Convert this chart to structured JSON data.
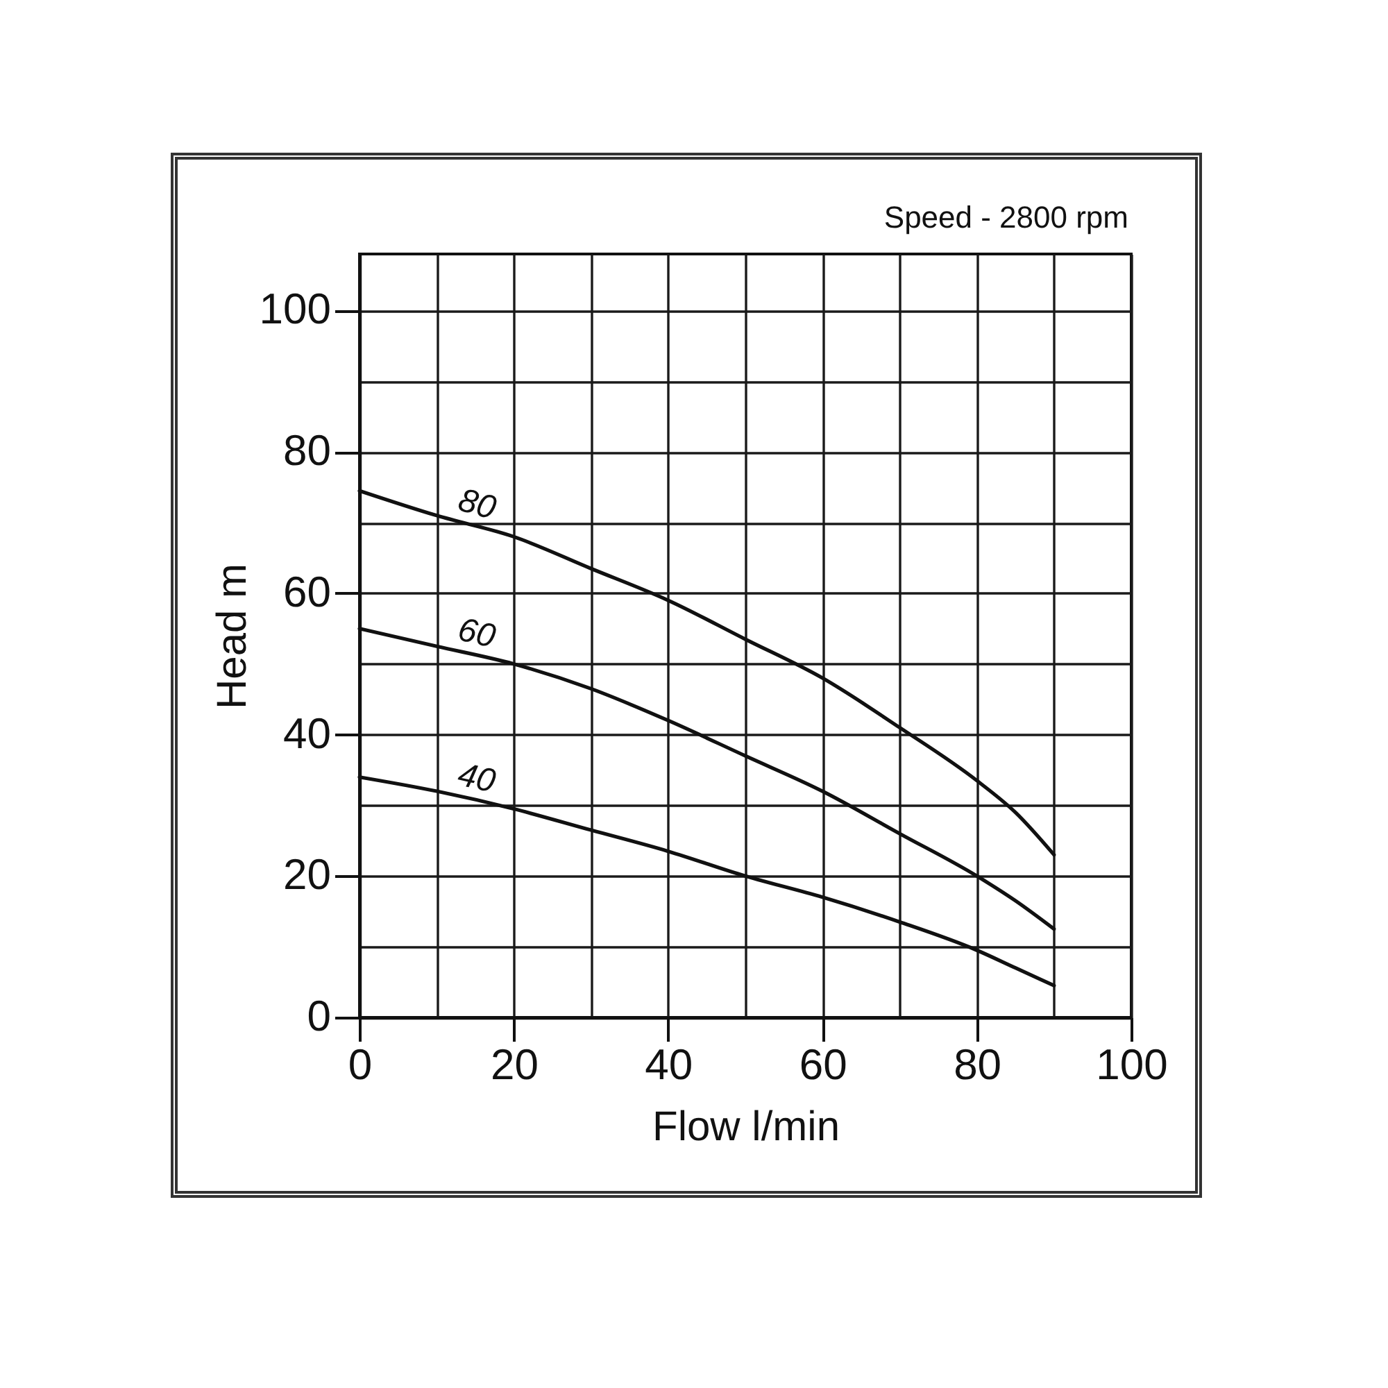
{
  "chart_data": {
    "type": "line",
    "xlabel": "Flow l/min",
    "ylabel": "Head m",
    "annotations": [
      "Speed - 2800 rpm"
    ],
    "x": [
      0,
      10,
      20,
      30,
      40,
      50,
      60,
      70,
      80,
      85,
      90
    ],
    "xlim": [
      0,
      100
    ],
    "xticks": [
      0,
      {
        "value": 10,
        "label": null
      },
      20,
      {
        "value": 30,
        "label": null
      },
      40,
      {
        "value": 50,
        "label": null
      },
      60,
      {
        "value": 70,
        "label": null
      },
      80,
      {
        "value": 90,
        "label": null
      },
      100
    ],
    "ylim": [
      0,
      108
    ],
    "yticks": [
      0,
      {
        "value": 10,
        "label": null
      },
      20,
      {
        "value": 30,
        "label": null
      },
      40,
      {
        "value": 50,
        "label": null
      },
      60,
      {
        "value": 70,
        "label": null
      },
      80,
      {
        "value": 90,
        "label": null
      },
      100
    ],
    "grid": true,
    "legend": false,
    "marker": "none",
    "line_style": "solid",
    "series": [
      {
        "name": "80",
        "color": "#111111",
        "values": [
          74.5,
          71,
          68,
          63.5,
          59,
          53.5,
          48,
          41,
          33.5,
          29,
          23
        ]
      },
      {
        "name": "60",
        "color": "#111111",
        "values": [
          55,
          52.5,
          50,
          46.5,
          42,
          37,
          32,
          26,
          20,
          16.5,
          12.5
        ]
      },
      {
        "name": "40",
        "color": "#111111",
        "values": [
          34,
          32,
          29.5,
          26.5,
          23.5,
          20,
          17,
          13.5,
          9.5,
          7,
          4.5
        ]
      }
    ]
  }
}
